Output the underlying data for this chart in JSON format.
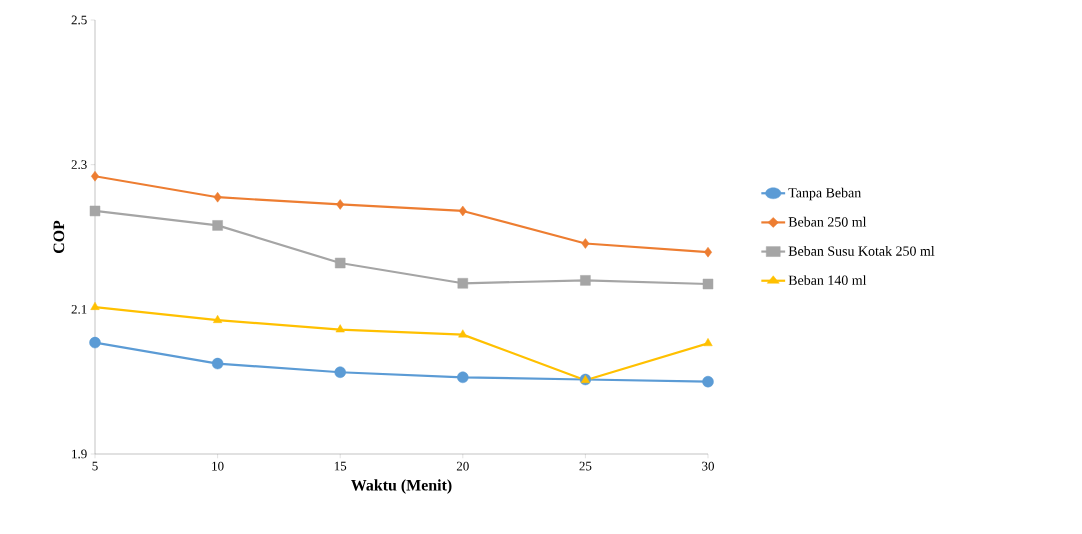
{
  "chart_data": {
    "type": "line",
    "xlabel": "Waktu (Menit)",
    "ylabel": "COP",
    "x": [
      5,
      10,
      15,
      20,
      25,
      30
    ],
    "series": [
      {
        "name": "Tanpa Beban",
        "color": "#5b9bd5",
        "marker": "circle",
        "values": [
          2.054,
          2.025,
          2.013,
          2.006,
          2.003,
          2.0
        ]
      },
      {
        "name": "Beban 250 ml",
        "color": "#ed7d31",
        "marker": "diamond",
        "values": [
          2.284,
          2.255,
          2.245,
          2.236,
          2.191,
          2.179
        ]
      },
      {
        "name": "Beban Susu Kotak 250 ml",
        "color": "#a5a5a5",
        "marker": "square",
        "values": [
          2.236,
          2.216,
          2.164,
          2.136,
          2.14,
          2.135
        ]
      },
      {
        "name": "Beban 140 ml",
        "color": "#ffc000",
        "marker": "triangle",
        "values": [
          2.103,
          2.085,
          2.072,
          2.065,
          2.002,
          2.053
        ]
      }
    ],
    "xlim": [
      5,
      30
    ],
    "xticks": [
      5,
      10,
      15,
      20,
      25,
      30
    ],
    "ylim": [
      1.9,
      2.5
    ],
    "yticks": [
      1.9,
      2.1,
      2.3,
      2.5
    ],
    "legend": "right",
    "grid": false
  }
}
